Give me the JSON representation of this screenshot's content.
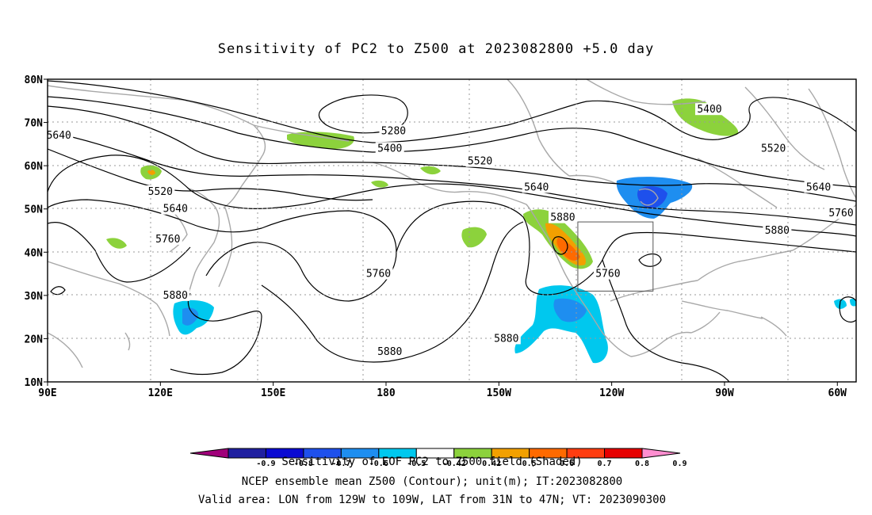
{
  "title": "Sensitivity of PC2 to Z500 at 2023082800 +5.0 day",
  "map": {
    "lon_range": [
      90,
      305
    ],
    "lat_range": [
      10,
      80
    ],
    "x_ticks": [
      "90E",
      "120E",
      "150E",
      "180",
      "150W",
      "120W",
      "90W",
      "60W"
    ],
    "y_ticks": [
      "80N",
      "70N",
      "60N",
      "50N",
      "40N",
      "30N",
      "20N",
      "10N"
    ],
    "valid_box": {
      "lon": [
        231,
        251
      ],
      "lat": [
        31,
        47
      ]
    },
    "contour_labels": [
      {
        "text": "5280",
        "lon": 182,
        "lat": 68
      },
      {
        "text": "5400",
        "lon": 181,
        "lat": 64
      },
      {
        "text": "5400",
        "lon": 266,
        "lat": 73
      },
      {
        "text": "5520",
        "lon": 120,
        "lat": 54
      },
      {
        "text": "5520",
        "lon": 205,
        "lat": 61
      },
      {
        "text": "5520",
        "lon": 283,
        "lat": 64
      },
      {
        "text": "5640",
        "lon": 93,
        "lat": 67
      },
      {
        "text": "5640",
        "lon": 124,
        "lat": 50
      },
      {
        "text": "5640",
        "lon": 220,
        "lat": 55
      },
      {
        "text": "5640",
        "lon": 295,
        "lat": 55
      },
      {
        "text": "5760",
        "lon": 122,
        "lat": 43
      },
      {
        "text": "5760",
        "lon": 178,
        "lat": 35
      },
      {
        "text": "5760",
        "lon": 239,
        "lat": 35
      },
      {
        "text": "5760",
        "lon": 301,
        "lat": 49
      },
      {
        "text": "5880",
        "lon": 124,
        "lat": 30
      },
      {
        "text": "5880",
        "lon": 181,
        "lat": 17
      },
      {
        "text": "5880",
        "lon": 212,
        "lat": 20
      },
      {
        "text": "5880",
        "lon": 227,
        "lat": 48
      },
      {
        "text": "5880",
        "lon": 284,
        "lat": 45
      }
    ]
  },
  "colorbar": {
    "ticks": [
      "-0.9",
      "-0.8",
      "-0.7",
      "-0.6",
      "-0.5",
      "-0.42",
      "0.42",
      "0.5",
      "0.6",
      "0.7",
      "0.8",
      "0.9"
    ],
    "colors": [
      "#a0007a",
      "#1f1fa0",
      "#0a0ad2",
      "#1e50ec",
      "#1e8ef0",
      "#00c8ee",
      "#ffffff",
      "#8cd23c",
      "#f2a000",
      "#ff6a00",
      "#ff3d10",
      "#e60000",
      "#ff8ed0"
    ]
  },
  "caption": [
    "Sensitivity of EOF PC2 to Z500 field (Shaded)",
    "NCEP ensemble mean Z500 (Contour); unit(m); IT:2023082800",
    "Valid area: LON from 129W to 109W, LAT from 31N to 47N; VT: 2023090300"
  ]
}
